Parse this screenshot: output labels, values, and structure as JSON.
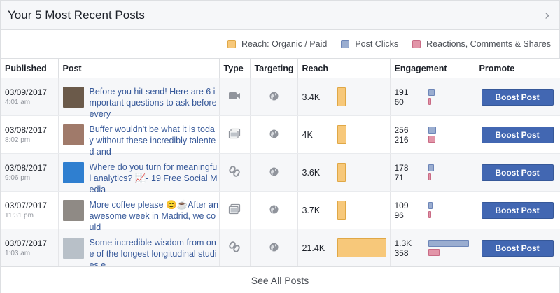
{
  "header": {
    "title": "Your 5 Most Recent Posts",
    "chevron_icon": "chevron-right-icon"
  },
  "legend": [
    {
      "label": "Reach: Organic / Paid",
      "color": "#f7c87a"
    },
    {
      "label": "Post Clicks",
      "color": "#9aadd0"
    },
    {
      "label": "Reactions, Comments & Shares",
      "color": "#e295a8"
    }
  ],
  "columns": {
    "published": "Published",
    "post": "Post",
    "type": "Type",
    "targeting": "Targeting",
    "reach": "Reach",
    "engagement": "Engagement",
    "promote": "Promote"
  },
  "rows": [
    {
      "date": "03/09/2017",
      "time": "4:01 am",
      "text": "Before you hit send! Here are 6 important questions to ask before every",
      "type_icon": "video-icon",
      "targeting_icon": "globe-icon",
      "reach": "3.4K",
      "reach_value": 3400,
      "clicks": "191",
      "clicks_value": 191,
      "reactions": "60",
      "reactions_value": 60,
      "boost_label": "Boost Post",
      "thumb_color": "#6b5a4a"
    },
    {
      "date": "03/08/2017",
      "time": "8:02 pm",
      "text": "Buffer wouldn't be what it is today without these incredibly talented and",
      "type_icon": "album-icon",
      "targeting_icon": "globe-icon",
      "reach": "4K",
      "reach_value": 4000,
      "clicks": "256",
      "clicks_value": 256,
      "reactions": "216",
      "reactions_value": 216,
      "boost_label": "Boost Post",
      "thumb_color": "#a07a6a"
    },
    {
      "date": "03/08/2017",
      "time": "9:06 pm",
      "text": "Where do you turn for meaningful analytics? 📈- 19 Free Social Media",
      "type_icon": "link-icon",
      "targeting_icon": "globe-icon",
      "reach": "3.6K",
      "reach_value": 3600,
      "clicks": "178",
      "clicks_value": 178,
      "reactions": "71",
      "reactions_value": 71,
      "boost_label": "Boost Post",
      "thumb_color": "#2f7fd0"
    },
    {
      "date": "03/07/2017",
      "time": "11:31 pm",
      "text": "More coffee please 😊☕After an awesome week in Madrid, we could",
      "type_icon": "album-icon",
      "targeting_icon": "globe-icon",
      "reach": "3.7K",
      "reach_value": 3700,
      "clicks": "109",
      "clicks_value": 109,
      "reactions": "96",
      "reactions_value": 96,
      "boost_label": "Boost Post",
      "thumb_color": "#8f8a85"
    },
    {
      "date": "03/07/2017",
      "time": "1:03 am",
      "text": "Some incredible wisdom from one of the longest longitudinal studies e",
      "type_icon": "link-icon",
      "targeting_icon": "globe-icon",
      "reach": "21.4K",
      "reach_value": 21400,
      "clicks": "1.3K",
      "clicks_value": 1300,
      "reactions": "358",
      "reactions_value": 358,
      "boost_label": "Boost Post",
      "thumb_color": "#b8c0c8"
    }
  ],
  "footer": {
    "label": "See All Posts"
  }
}
